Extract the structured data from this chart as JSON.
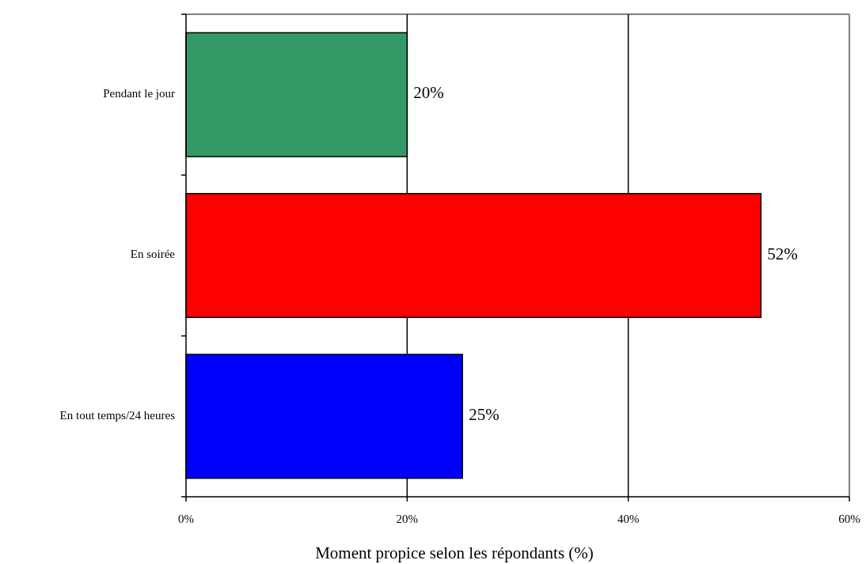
{
  "chart_data": {
    "type": "bar",
    "orientation": "horizontal",
    "xlabel": "Moment propice selon les répondants (%)",
    "categories": [
      "Pendant le jour",
      "En soirée",
      "En tout temps/24 heures"
    ],
    "values": [
      20,
      52,
      25
    ],
    "colors": [
      "#339966",
      "#ff0000",
      "#0000ff"
    ],
    "value_labels": [
      "20%",
      "52%",
      "25%"
    ],
    "xlim": [
      0,
      60
    ],
    "xticks": [
      {
        "value": 0,
        "label": "0%"
      },
      {
        "value": 20,
        "label": "20%"
      },
      {
        "value": 40,
        "label": "40%"
      },
      {
        "value": 60,
        "label": "60%"
      }
    ],
    "grid": "x"
  }
}
